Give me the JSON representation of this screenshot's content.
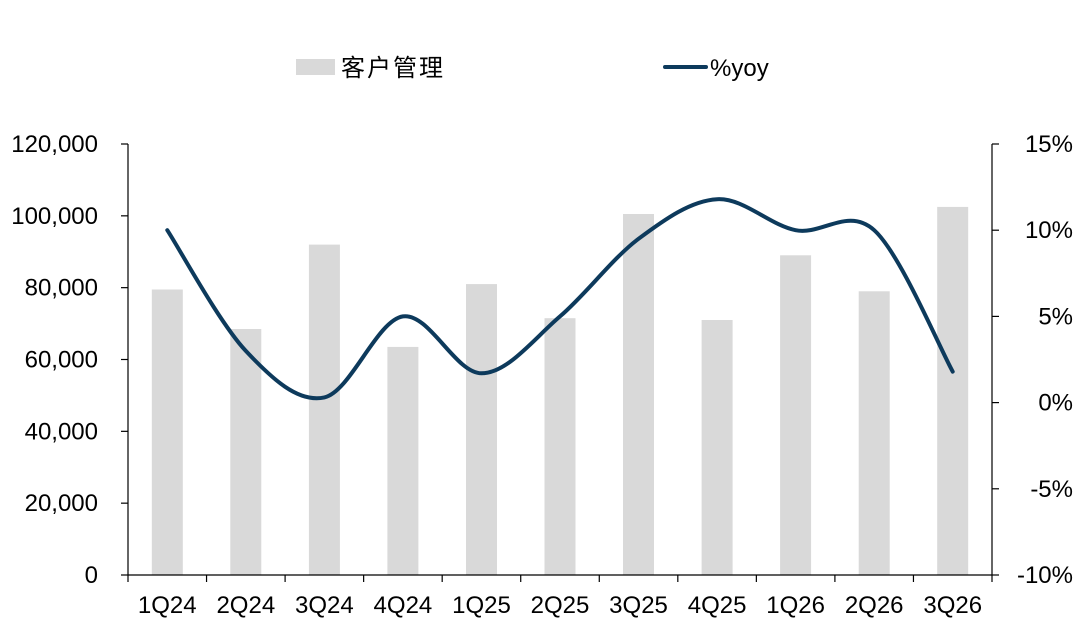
{
  "chart_data": {
    "type": "bar",
    "categories": [
      "1Q24",
      "2Q24",
      "3Q24",
      "4Q24",
      "1Q25",
      "2Q25",
      "3Q25",
      "4Q25",
      "1Q26",
      "2Q26",
      "3Q26"
    ],
    "series": [
      {
        "name": "客户管理",
        "type": "bar",
        "axis": "left",
        "color": "#d9d9d9",
        "values": [
          79500,
          68500,
          92000,
          63500,
          81000,
          71500,
          100500,
          71000,
          89000,
          79000,
          102500
        ]
      },
      {
        "name": "%yoy",
        "type": "line",
        "axis": "right",
        "color": "#0d3a5c",
        "smooth": true,
        "values": [
          10.0,
          3.0,
          0.3,
          5.0,
          1.7,
          5.0,
          9.5,
          11.8,
          10.0,
          10.0,
          1.8
        ]
      }
    ],
    "y_left": {
      "ylim": [
        0,
        120000
      ],
      "ticks": [
        0,
        20000,
        40000,
        60000,
        80000,
        100000,
        120000
      ],
      "tick_labels": [
        "0",
        "20,000",
        "40,000",
        "60,000",
        "80,000",
        "100,000",
        "120,000"
      ]
    },
    "y_right": {
      "ylim": [
        -10,
        15
      ],
      "ticks": [
        -10,
        -5,
        0,
        5,
        10,
        15
      ],
      "tick_labels": [
        "-10%",
        "-5%",
        "0%",
        "5%",
        "10%",
        "15%"
      ]
    },
    "title": "",
    "xlabel": "",
    "ylabel": "",
    "grid": false,
    "legend_placement": "top-center"
  }
}
